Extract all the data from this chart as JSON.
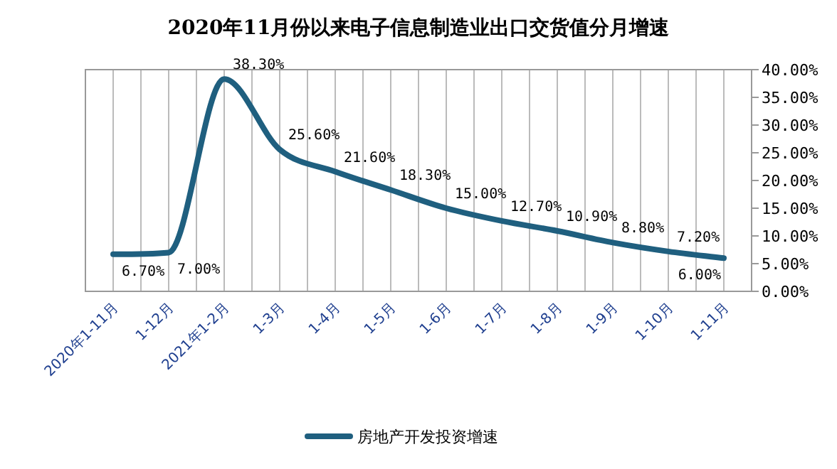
{
  "chart_data": {
    "type": "line",
    "title": "2020年11月份以来电子信息制造业出口交货值分月增速",
    "categories": [
      "2020年1-11月",
      "1-12月",
      "2021年1-2月",
      "1-3月",
      "1-4月",
      "1-5月",
      "1-6月",
      "1-7月",
      "1-8月",
      "1-9月",
      "1-10月",
      "1-11月"
    ],
    "series": [
      {
        "name": "房地产开发投资增速",
        "color": "#1f5f7f",
        "values": [
          6.7,
          7.0,
          38.3,
          25.6,
          21.6,
          18.3,
          15.0,
          12.7,
          10.9,
          8.8,
          7.2,
          6.0
        ],
        "value_labels": [
          "6.70%",
          "7.00%",
          "38.30%",
          "25.60%",
          "21.60%",
          "18.30%",
          "15.00%",
          "12.70%",
          "10.90%",
          "8.80%",
          "7.20%",
          "6.00%"
        ]
      }
    ],
    "ylim": [
      0,
      40
    ],
    "yticks": [
      {
        "value": 0,
        "label": "0.00%"
      },
      {
        "value": 5,
        "label": "5.00%"
      },
      {
        "value": 10,
        "label": "10.00%"
      },
      {
        "value": 15,
        "label": "15.00%"
      },
      {
        "value": 20,
        "label": "20.00%"
      },
      {
        "value": 25,
        "label": "25.00%"
      },
      {
        "value": 30,
        "label": "30.00%"
      },
      {
        "value": 35,
        "label": "35.00%"
      },
      {
        "value": 40,
        "label": "40.00%"
      }
    ],
    "grid": "x",
    "legend": "bottom"
  }
}
